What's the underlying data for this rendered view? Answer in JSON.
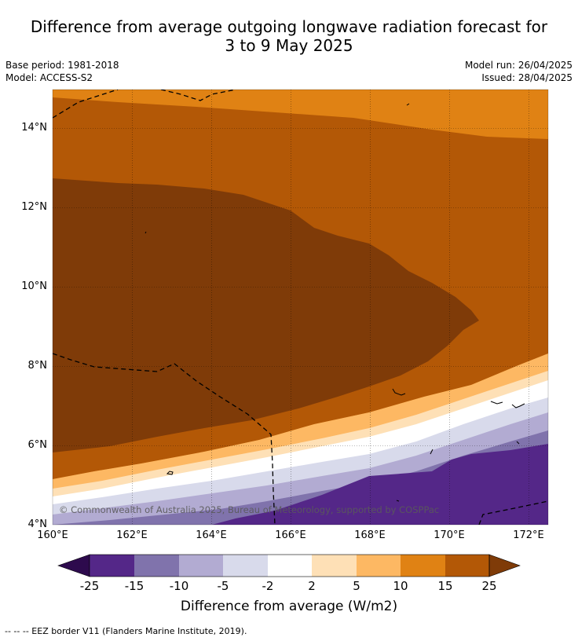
{
  "title": {
    "line1": "Difference from average outgoing longwave radiation forecast for",
    "line2": "3 to 9 May 2025"
  },
  "meta": {
    "base_period": "Base period: 1981-2018",
    "model": "Model: ACCESS-S2",
    "model_run": "Model run: 26/04/2025",
    "issued": "Issued: 28/04/2025"
  },
  "axes": {
    "lat_labels": [
      "14°N",
      "12°N",
      "10°N",
      "8°N",
      "6°N",
      "4°N"
    ],
    "lon_labels": [
      "160°E",
      "162°E",
      "164°E",
      "166°E",
      "168°E",
      "170°E",
      "172°E"
    ]
  },
  "copyright": "© Commonwealth of Australia 2025, Bureau of Meteorology, supported by COSPPac",
  "colorbar": {
    "labels": [
      "-25",
      "-15",
      "-10",
      "-5",
      "-2",
      "2",
      "5",
      "10",
      "15",
      "25"
    ],
    "colors": [
      "#2d0a4d",
      "#542788",
      "#8073ac",
      "#b2abd2",
      "#d8daeb",
      "#ffffff",
      "#fee0b6",
      "#fdb863",
      "#e08214",
      "#b35806",
      "#7f3b08"
    ],
    "title": "Difference from average (W/m2)"
  },
  "footnote": "--  --  -- EEZ border V11 (Flanders Marine Institute, 2019)."
}
